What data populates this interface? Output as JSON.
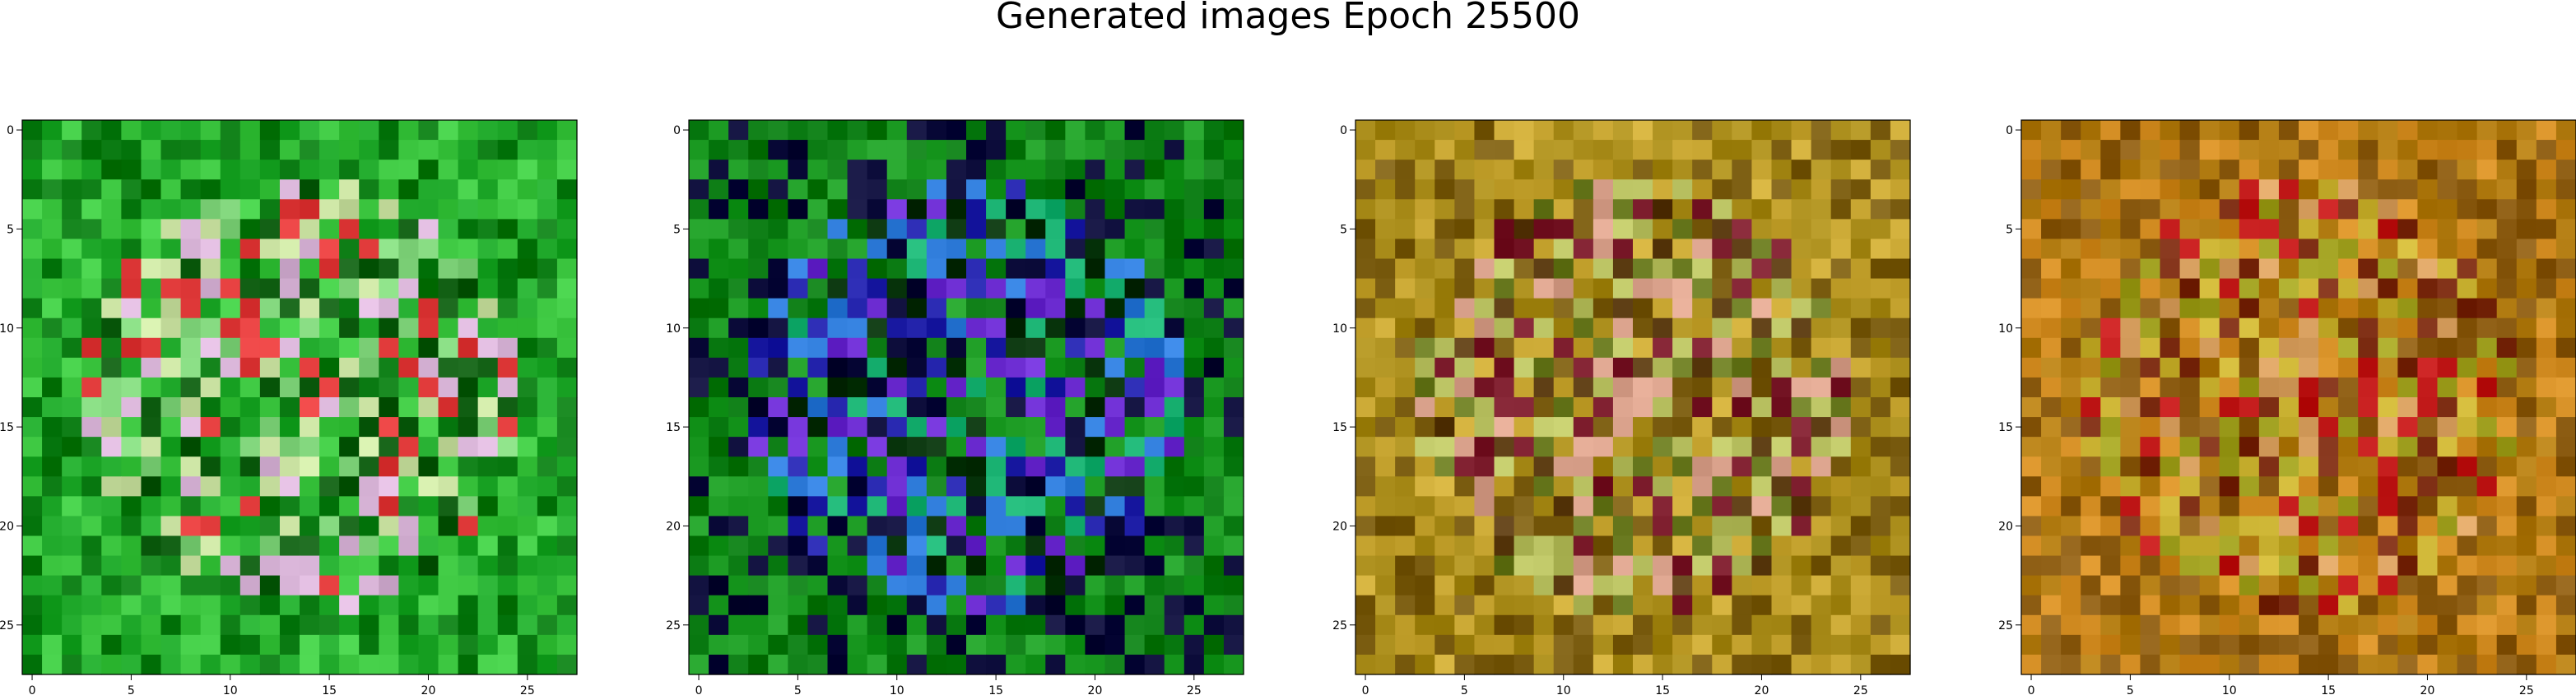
{
  "figure": {
    "title": "Generated images Epoch 25500"
  },
  "chart_data": [
    {
      "type": "heatmap",
      "grid_size": 28,
      "x_ticks": [
        "0",
        "5",
        "10",
        "15",
        "20",
        "25"
      ],
      "y_ticks": [
        "0",
        "5",
        "10",
        "15",
        "20",
        "25"
      ],
      "xlim": [
        -0.5,
        27.5
      ],
      "ylim": [
        27.5,
        -0.5
      ],
      "palette": [
        "#0a7a12",
        "#1fa82a",
        "#3cc640",
        "#0e5c10",
        "#7fd37a",
        "#d7b3d6",
        "#e03a3a",
        "#c8e0a0"
      ],
      "seed": 11
    },
    {
      "type": "heatmap",
      "grid_size": 28,
      "x_ticks": [
        "0",
        "5",
        "10",
        "15",
        "20",
        "25"
      ],
      "y_ticks": [
        "0",
        "5",
        "10",
        "15",
        "20",
        "25"
      ],
      "xlim": [
        -0.5,
        27.5
      ],
      "ylim": [
        27.5,
        -0.5
      ],
      "palette": [
        "#0a7a12",
        "#1b9a22",
        "#0a0a38",
        "#2020a8",
        "#2d7ad8",
        "#18b070",
        "#06320a",
        "#6b2bd0"
      ],
      "seed": 23
    },
    {
      "type": "heatmap",
      "grid_size": 28,
      "x_ticks": [
        "0",
        "5",
        "10",
        "15",
        "20",
        "25"
      ],
      "y_ticks": [
        "0",
        "5",
        "10",
        "15",
        "20",
        "25"
      ],
      "xlim": [
        -0.5,
        27.5
      ],
      "ylim": [
        27.5,
        -0.5
      ],
      "palette": [
        "#a78a18",
        "#c8a632",
        "#7a5c10",
        "#d8a08a",
        "#5a3a10",
        "#b8c060",
        "#7a1a2a",
        "#6a7a20"
      ],
      "seed": 37
    },
    {
      "type": "heatmap",
      "grid_size": 28,
      "x_ticks": [
        "0",
        "5",
        "10",
        "15",
        "20",
        "25"
      ],
      "y_ticks": [
        "0",
        "5",
        "10",
        "15",
        "20",
        "25"
      ],
      "xlim": [
        -0.5,
        27.5
      ],
      "ylim": [
        27.5,
        -0.5
      ],
      "palette": [
        "#b07a10",
        "#d08a20",
        "#8a5a10",
        "#c8b030",
        "#7a2a10",
        "#a0a020",
        "#c01818",
        "#d8a060"
      ],
      "seed": 53
    }
  ]
}
